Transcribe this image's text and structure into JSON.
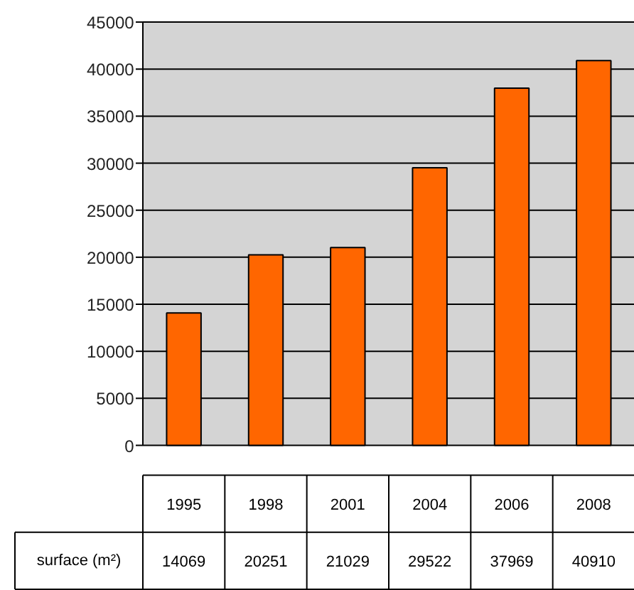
{
  "chart_data": {
    "type": "bar",
    "categories": [
      "1995",
      "1998",
      "2001",
      "2004",
      "2006",
      "2008"
    ],
    "series": [
      {
        "name": "surface (m²)",
        "color": "#ff6600",
        "values": [
          14069,
          20251,
          21029,
          29522,
          37969,
          40910
        ]
      }
    ],
    "ylim": [
      0,
      45000
    ],
    "yticks": [
      0,
      5000,
      10000,
      15000,
      20000,
      25000,
      30000,
      35000,
      40000,
      45000
    ],
    "grid": "y",
    "data_labels": true
  }
}
